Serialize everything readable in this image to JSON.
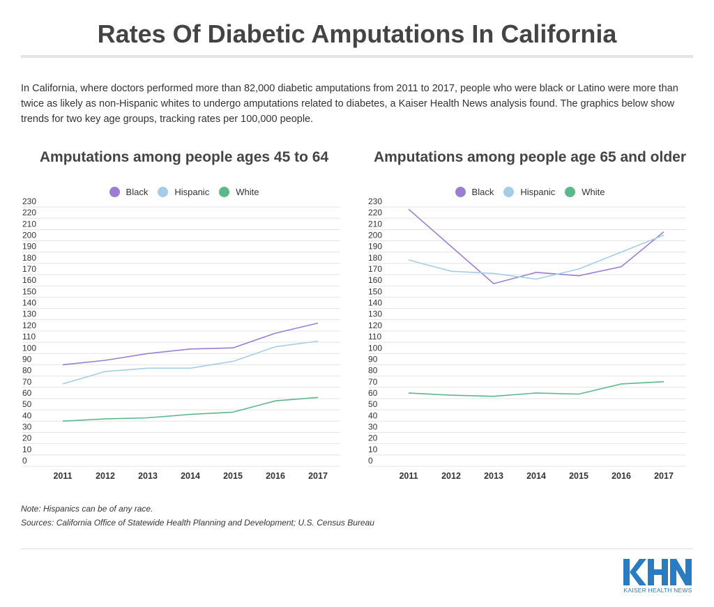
{
  "title": "Rates Of Diabetic Amputations In California",
  "intro": "In California, where doctors performed more than 82,000 diabetic amputations from 2011 to 2017, people who were black or Latino were more than twice as likely as non-Hispanic whites to undergo amputations related to diabetes, a Kaiser Health News analysis found. The graphics below show trends for two key age groups, tracking rates per 100,000 people.",
  "notes": {
    "note": "Note: Hispanics can be of any race.",
    "sources": "Sources: California Office of Statewide Health Planning and Development; U.S. Census Bureau"
  },
  "logo": {
    "letters": "KHN",
    "subtitle": "KAISER HEALTH NEWS",
    "color": "#2a7bbf"
  },
  "colors": {
    "Black": "#9b7ed0",
    "Hispanic": "#a5cde8",
    "White": "#5cb88a",
    "grid": "#e3e3e3",
    "axis_text": "#333333"
  },
  "chart_data": [
    {
      "type": "line",
      "title": "Amputations among people ages 45 to 64",
      "x": [
        "2011",
        "2012",
        "2013",
        "2014",
        "2015",
        "2016",
        "2017"
      ],
      "ylim": [
        0,
        230
      ],
      "yticks": [
        0,
        10,
        20,
        30,
        40,
        50,
        60,
        70,
        80,
        90,
        100,
        110,
        120,
        130,
        140,
        150,
        160,
        170,
        180,
        190,
        200,
        210,
        220,
        230
      ],
      "grid": true,
      "legend": "top-center",
      "series": [
        {
          "name": "Black",
          "values": [
            90,
            94,
            100,
            104,
            105,
            118,
            127
          ]
        },
        {
          "name": "Hispanic",
          "values": [
            73,
            84,
            87,
            87,
            93,
            106,
            111
          ]
        },
        {
          "name": "White",
          "values": [
            40,
            42,
            43,
            46,
            48,
            58,
            61
          ]
        }
      ]
    },
    {
      "type": "line",
      "title": "Amputations among people age 65 and older",
      "x": [
        "2011",
        "2012",
        "2013",
        "2014",
        "2015",
        "2016",
        "2017"
      ],
      "ylim": [
        0,
        230
      ],
      "yticks": [
        0,
        10,
        20,
        30,
        40,
        50,
        60,
        70,
        80,
        90,
        100,
        110,
        120,
        130,
        140,
        150,
        160,
        170,
        180,
        190,
        200,
        210,
        220,
        230
      ],
      "grid": true,
      "legend": "top-center",
      "series": [
        {
          "name": "Black",
          "values": [
            228,
            195,
            162,
            172,
            169,
            177,
            208
          ]
        },
        {
          "name": "Hispanic",
          "values": [
            183,
            173,
            171,
            166,
            175,
            190,
            205
          ]
        },
        {
          "name": "White",
          "values": [
            65,
            63,
            62,
            65,
            64,
            73,
            75
          ]
        }
      ]
    }
  ]
}
